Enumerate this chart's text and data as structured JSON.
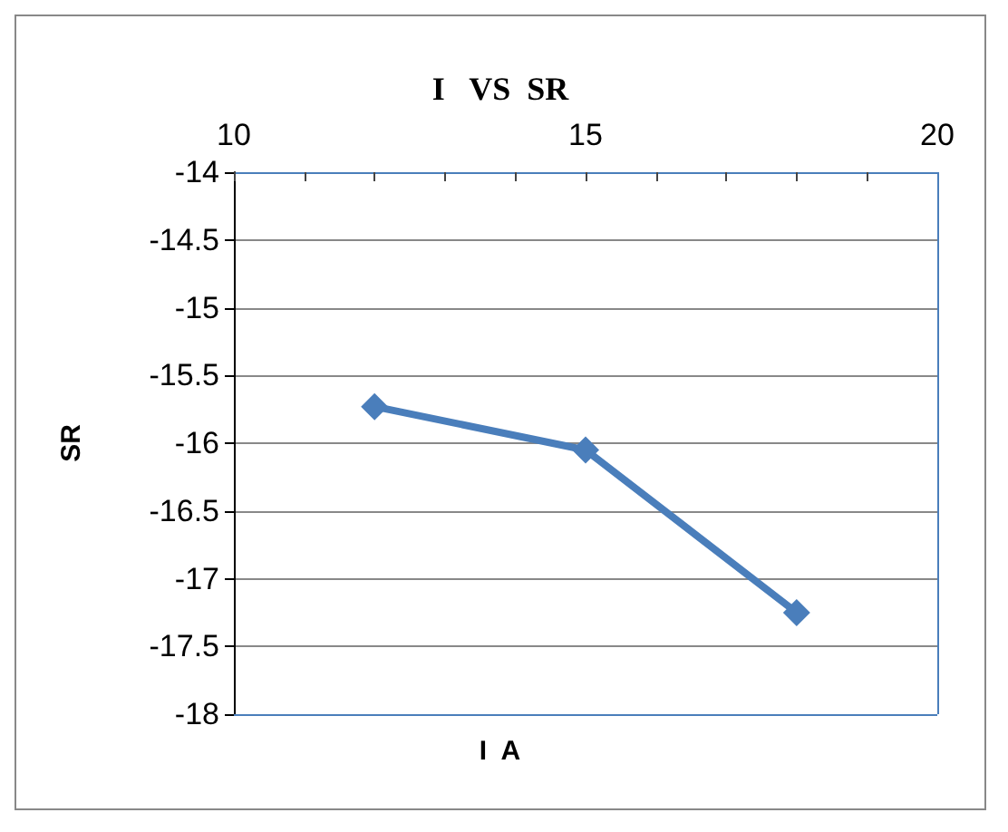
{
  "chart_data": {
    "type": "line",
    "title": "I   VS  SR",
    "xlabel": "I  A",
    "ylabel": "SR",
    "x": [
      12,
      15,
      18
    ],
    "series": [
      {
        "color": "#4a7ebb",
        "values": [
          -15.73,
          -16.05,
          -17.25
        ]
      }
    ],
    "xlim": [
      10,
      20
    ],
    "xticks": [
      10,
      {
        "value": 11,
        "label": null
      },
      {
        "value": 12,
        "label": null
      },
      {
        "value": 13,
        "label": null
      },
      {
        "value": 14,
        "label": null
      },
      15,
      {
        "value": 16,
        "label": null
      },
      {
        "value": 17,
        "label": null
      },
      {
        "value": 18,
        "label": null
      },
      {
        "value": 19,
        "label": null
      },
      20
    ],
    "ylim": [
      -18,
      -14
    ],
    "yticks": [
      -18,
      -17.5,
      -17,
      -16.5,
      -16,
      -15.5,
      -15,
      -14.5,
      -14
    ],
    "grid": "y",
    "marker": "diamond",
    "line_style": "solid"
  }
}
